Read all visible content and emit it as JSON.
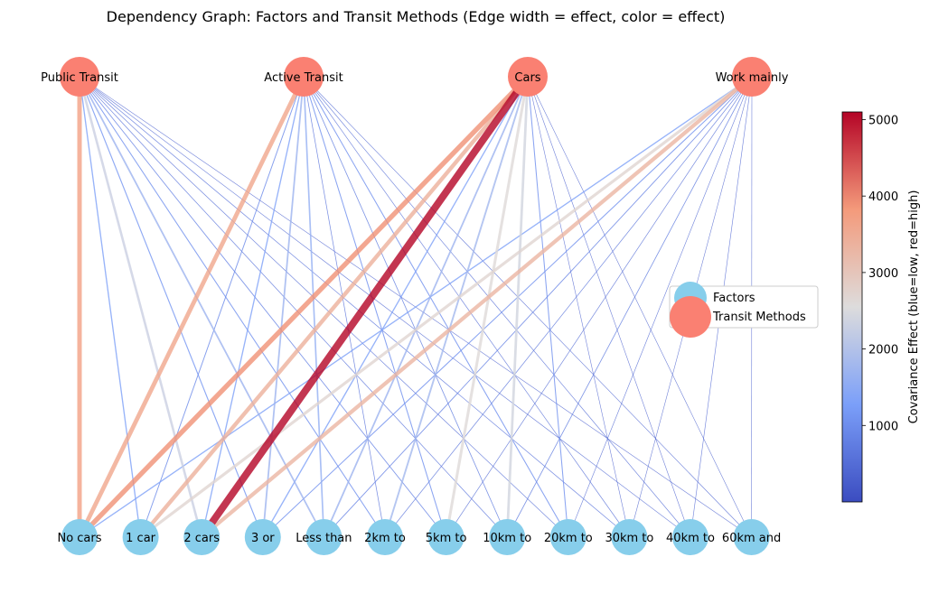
{
  "title": "Dependency Graph: Factors and Transit Methods (Edge width = effect, color = effect)",
  "legend": {
    "items": [
      {
        "label": "Factors",
        "color": "#87ceeb"
      },
      {
        "label": "Transit Methods",
        "color": "#fa8072"
      }
    ]
  },
  "colorbar": {
    "label": "Covariance Effect (blue=low, red=high)",
    "min": 0,
    "max": 5100,
    "ticks": [
      "1000",
      "2000",
      "3000",
      "4000",
      "5000"
    ],
    "colormap": "coolwarm"
  },
  "transit_nodes": [
    "Public Transit",
    "Active Transit",
    "Cars",
    "Work mainly"
  ],
  "factor_nodes": [
    "No cars",
    "1 car",
    "2 cars",
    "3 or",
    "Less than",
    "2km to",
    "5km to",
    "10km to",
    "20km to",
    "30km to",
    "40km to",
    "60km and"
  ],
  "chart_data": {
    "type": "network",
    "edges": [
      [
        3700,
        1300,
        2300,
        1100,
        1700,
        1000,
        800,
        600,
        500,
        600,
        400,
        350
      ],
      [
        3600,
        900,
        1300,
        1700,
        1600,
        600,
        1000,
        700,
        1000,
        500,
        500,
        400
      ],
      [
        3900,
        3400,
        5100,
        1300,
        1700,
        1800,
        2600,
        2400,
        1000,
        350,
        350,
        300
      ],
      [
        1300,
        2700,
        3300,
        1000,
        800,
        600,
        500,
        700,
        400,
        300,
        450,
        350
      ]
    ]
  }
}
